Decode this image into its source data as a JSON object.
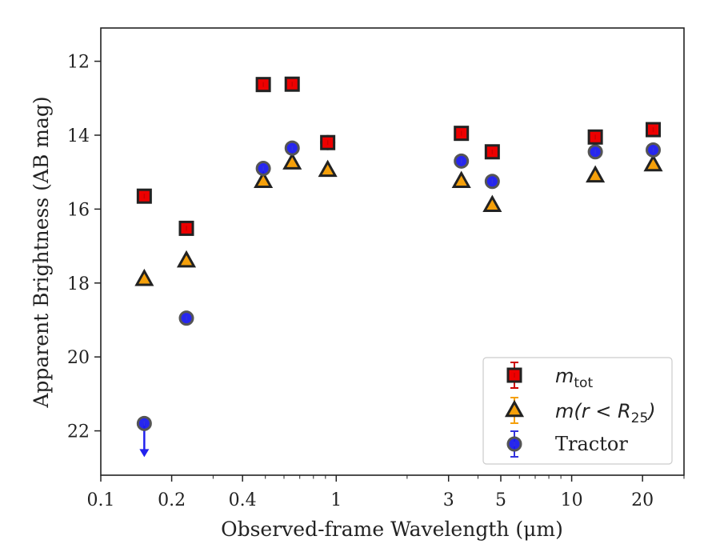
{
  "chart_data": {
    "type": "scatter",
    "xlabel": "Observed-frame Wavelength (μm)",
    "ylabel": "Apparent Brightness (AB mag)",
    "xscale": "log",
    "xlim": [
      0.1,
      30
    ],
    "ylim": [
      23.2,
      11.1
    ],
    "y_inverted": true,
    "x_ticks": [
      0.1,
      0.2,
      0.4,
      1,
      3,
      5,
      10,
      20
    ],
    "x_tick_labels": [
      "0.1",
      "0.2",
      "0.4",
      "1",
      "3",
      "5",
      "10",
      "20"
    ],
    "y_ticks": [
      12,
      14,
      16,
      18,
      20,
      22
    ],
    "y_tick_labels": [
      "12",
      "14",
      "16",
      "18",
      "20",
      "22"
    ],
    "grid": false,
    "legend_position": "bottom-right",
    "series": [
      {
        "name": "m_tot",
        "marker": "square",
        "color": "#ee0000",
        "edge_color": "#222222",
        "error_color": "#cc0000",
        "x": [
          0.153,
          0.231,
          0.49,
          0.65,
          0.92,
          3.4,
          4.6,
          12.6,
          22.2
        ],
        "y": [
          15.65,
          16.52,
          12.63,
          12.62,
          14.2,
          13.95,
          14.45,
          14.05,
          13.85
        ]
      },
      {
        "name": "m(r<R25)",
        "marker": "triangle",
        "color": "#f5a00a",
        "edge_color": "#222222",
        "error_color": "#f5a00a",
        "x": [
          0.153,
          0.231,
          0.49,
          0.65,
          0.92,
          3.4,
          4.6,
          12.6,
          22.2
        ],
        "y": [
          17.9,
          17.4,
          15.25,
          14.75,
          14.95,
          15.25,
          15.9,
          15.1,
          14.8
        ]
      },
      {
        "name": "Tractor",
        "marker": "circle",
        "color": "#1a1aee",
        "edge_color": "#555555",
        "error_color": "#3333dd",
        "x": [
          0.153,
          0.231,
          0.49,
          0.65,
          0.92,
          3.4,
          4.6,
          12.6,
          22.2
        ],
        "y": [
          21.8,
          18.95,
          14.9,
          14.35,
          14.2,
          14.7,
          15.25,
          14.45,
          14.4
        ],
        "upper_limit_index": 0
      }
    ],
    "legend": [
      {
        "label": "m",
        "subscript": "tot",
        "marker": "square"
      },
      {
        "label": "m(r < R",
        "subscript": "25",
        "suffix": ")",
        "marker": "triangle"
      },
      {
        "label": "Tractor",
        "marker": "circle"
      }
    ]
  }
}
